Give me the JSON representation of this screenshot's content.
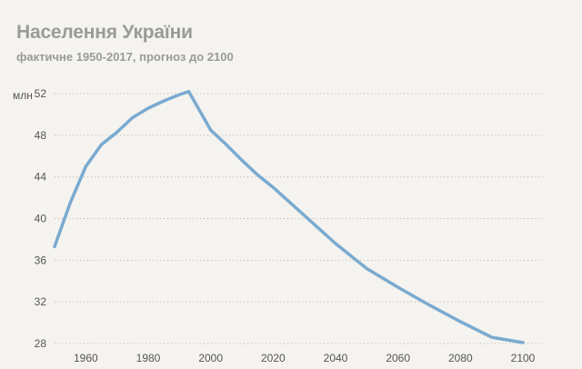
{
  "chart_data": {
    "type": "line",
    "title": "Населення України",
    "subtitle": "фактичне 1950-2017, прогноз до 2100",
    "ylabel_unit": "млн",
    "x_ticks": [
      1960,
      1980,
      2000,
      2020,
      2040,
      2060,
      2080,
      2100
    ],
    "y_ticks": [
      28,
      32,
      36,
      40,
      44,
      48,
      52
    ],
    "xlim": [
      1950,
      2100
    ],
    "ylim": [
      28,
      52
    ],
    "grid": "horizontal-dotted",
    "line_color": "#7aaad0",
    "series": [
      {
        "x": [
          1950,
          1955,
          1960,
          1965,
          1970,
          1975,
          1980,
          1985,
          1990,
          1993,
          2000,
          2005,
          2010,
          2015,
          2020,
          2030,
          2040,
          2050,
          2060,
          2070,
          2080,
          2090,
          2100
        ],
        "values": [
          37.3,
          41.5,
          45.0,
          47.1,
          48.3,
          49.7,
          50.6,
          51.3,
          51.9,
          52.2,
          48.5,
          47.1,
          45.6,
          44.2,
          43.0,
          40.3,
          37.6,
          35.2,
          33.4,
          31.7,
          30.1,
          28.6,
          28.1
        ]
      }
    ]
  }
}
